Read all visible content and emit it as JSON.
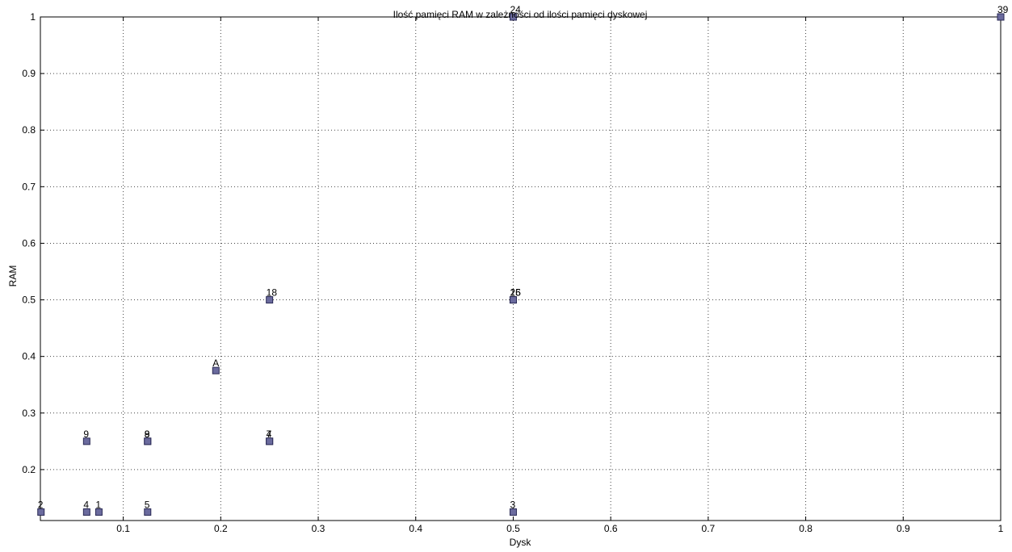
{
  "chart_data": {
    "type": "scatter",
    "title": "Ilość pamięci RAM w zależności od ilości pamięci dyskowej",
    "xlabel": "Dysk",
    "ylabel": "RAM",
    "xlim": [
      0.015,
      1.0
    ],
    "ylim": [
      0.11,
      1.0
    ],
    "xticks": [
      0.1,
      0.2,
      0.3,
      0.4,
      0.5,
      0.6,
      0.7,
      0.8,
      0.9,
      1
    ],
    "yticks": [
      0.2,
      0.3,
      0.4,
      0.5,
      0.6,
      0.7,
      0.8,
      0.9,
      1
    ],
    "xtick_labels": [
      "0.1",
      "0.2",
      "0.3",
      "0.4",
      "0.5",
      "0.6",
      "0.7",
      "0.8",
      "0.9",
      "1"
    ],
    "ytick_labels": [
      "0.2",
      "0.3",
      "0.4",
      "0.5",
      "0.6",
      "0.7",
      "0.8",
      "0.9",
      "1"
    ],
    "grid": true,
    "marker": "square",
    "marker_color": "#6b6b9e",
    "points": [
      {
        "label": "2",
        "x": 0.0156,
        "y": 0.125
      },
      {
        "label": "4",
        "x": 0.0625,
        "y": 0.125
      },
      {
        "label": "1",
        "x": 0.075,
        "y": 0.125
      },
      {
        "label": "5",
        "x": 0.125,
        "y": 0.125
      },
      {
        "label": "3",
        "x": 0.5,
        "y": 0.125
      },
      {
        "label": "9",
        "x": 0.0625,
        "y": 0.25
      },
      {
        "label": "9",
        "x": 0.125,
        "y": 0.25
      },
      {
        "label": "8",
        "x": 0.125,
        "y": 0.25
      },
      {
        "label": "7",
        "x": 0.25,
        "y": 0.25
      },
      {
        "label": "4",
        "x": 0.25,
        "y": 0.25
      },
      {
        "label": "A",
        "x": 0.195,
        "y": 0.375
      },
      {
        "label": "18",
        "x": 0.25,
        "y": 0.5
      },
      {
        "label": "15",
        "x": 0.5,
        "y": 0.5
      },
      {
        "label": "26",
        "x": 0.5,
        "y": 0.5
      },
      {
        "label": "24",
        "x": 0.5,
        "y": 1.0
      },
      {
        "label": "39",
        "x": 1.0,
        "y": 1.0
      }
    ]
  }
}
